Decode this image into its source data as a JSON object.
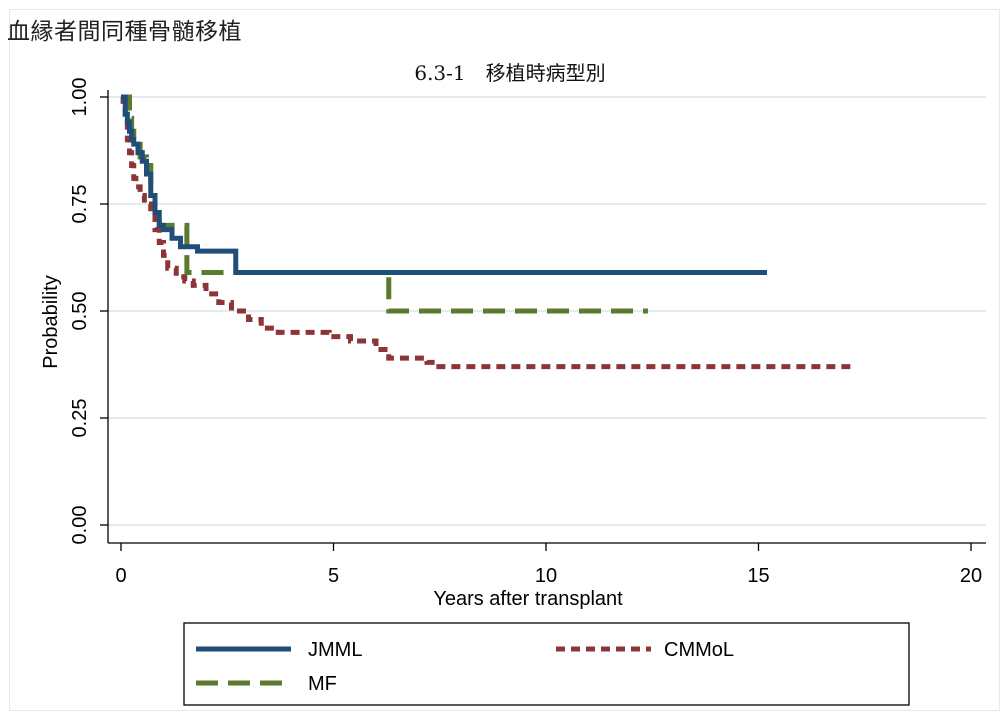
{
  "header": {
    "title": "血縁者間同種骨髄移植"
  },
  "chart_data": {
    "type": "line",
    "step": true,
    "title": "6.3-1　移植時病型別",
    "xlabel": "Years after transplant",
    "ylabel": "Probability",
    "xlim": [
      0,
      20
    ],
    "ylim": [
      0,
      1
    ],
    "xticks": [
      "0",
      "5",
      "10",
      "15",
      "20"
    ],
    "yticks": [
      "0.00",
      "0.25",
      "0.50",
      "0.75",
      "1.00"
    ],
    "grid": "horizontal",
    "legend_position": "bottom",
    "series": [
      {
        "name": "JMML",
        "color": "#1f4e79",
        "style": "solid",
        "x": [
          0,
          0.1,
          0.15,
          0.2,
          0.25,
          0.3,
          0.4,
          0.5,
          0.6,
          0.7,
          0.8,
          0.9,
          1.0,
          1.2,
          1.4,
          1.8,
          2.7,
          15.2
        ],
        "y": [
          1.0,
          0.96,
          0.94,
          0.92,
          0.9,
          0.89,
          0.87,
          0.85,
          0.82,
          0.77,
          0.73,
          0.7,
          0.69,
          0.67,
          0.65,
          0.64,
          0.59,
          0.59
        ]
      },
      {
        "name": "MF",
        "color": "#5a7a2e",
        "style": "long-dash",
        "x": [
          0,
          0.2,
          0.25,
          0.3,
          0.45,
          0.6,
          0.7,
          0.8,
          0.9,
          1.4,
          1.55,
          6.3,
          12.4
        ],
        "y": [
          1.0,
          0.95,
          0.92,
          0.9,
          0.86,
          0.84,
          0.77,
          0.73,
          0.7,
          0.7,
          0.59,
          0.5,
          0.5
        ]
      },
      {
        "name": "CMMoL",
        "color": "#8e3437",
        "style": "short-dash",
        "x": [
          0,
          0.05,
          0.1,
          0.15,
          0.2,
          0.25,
          0.3,
          0.35,
          0.45,
          0.55,
          0.7,
          0.8,
          0.9,
          1.0,
          1.1,
          1.3,
          1.5,
          1.7,
          2.0,
          2.3,
          2.6,
          3.0,
          3.3,
          3.7,
          4.3,
          4.9,
          5.4,
          6.0,
          6.3,
          6.8,
          7.2,
          7.4,
          17.2
        ],
        "y": [
          1.0,
          0.98,
          0.95,
          0.9,
          0.87,
          0.84,
          0.81,
          0.79,
          0.77,
          0.75,
          0.73,
          0.69,
          0.66,
          0.63,
          0.6,
          0.58,
          0.57,
          0.56,
          0.54,
          0.52,
          0.5,
          0.48,
          0.46,
          0.45,
          0.45,
          0.44,
          0.43,
          0.41,
          0.39,
          0.39,
          0.38,
          0.37,
          0.37
        ]
      }
    ]
  }
}
